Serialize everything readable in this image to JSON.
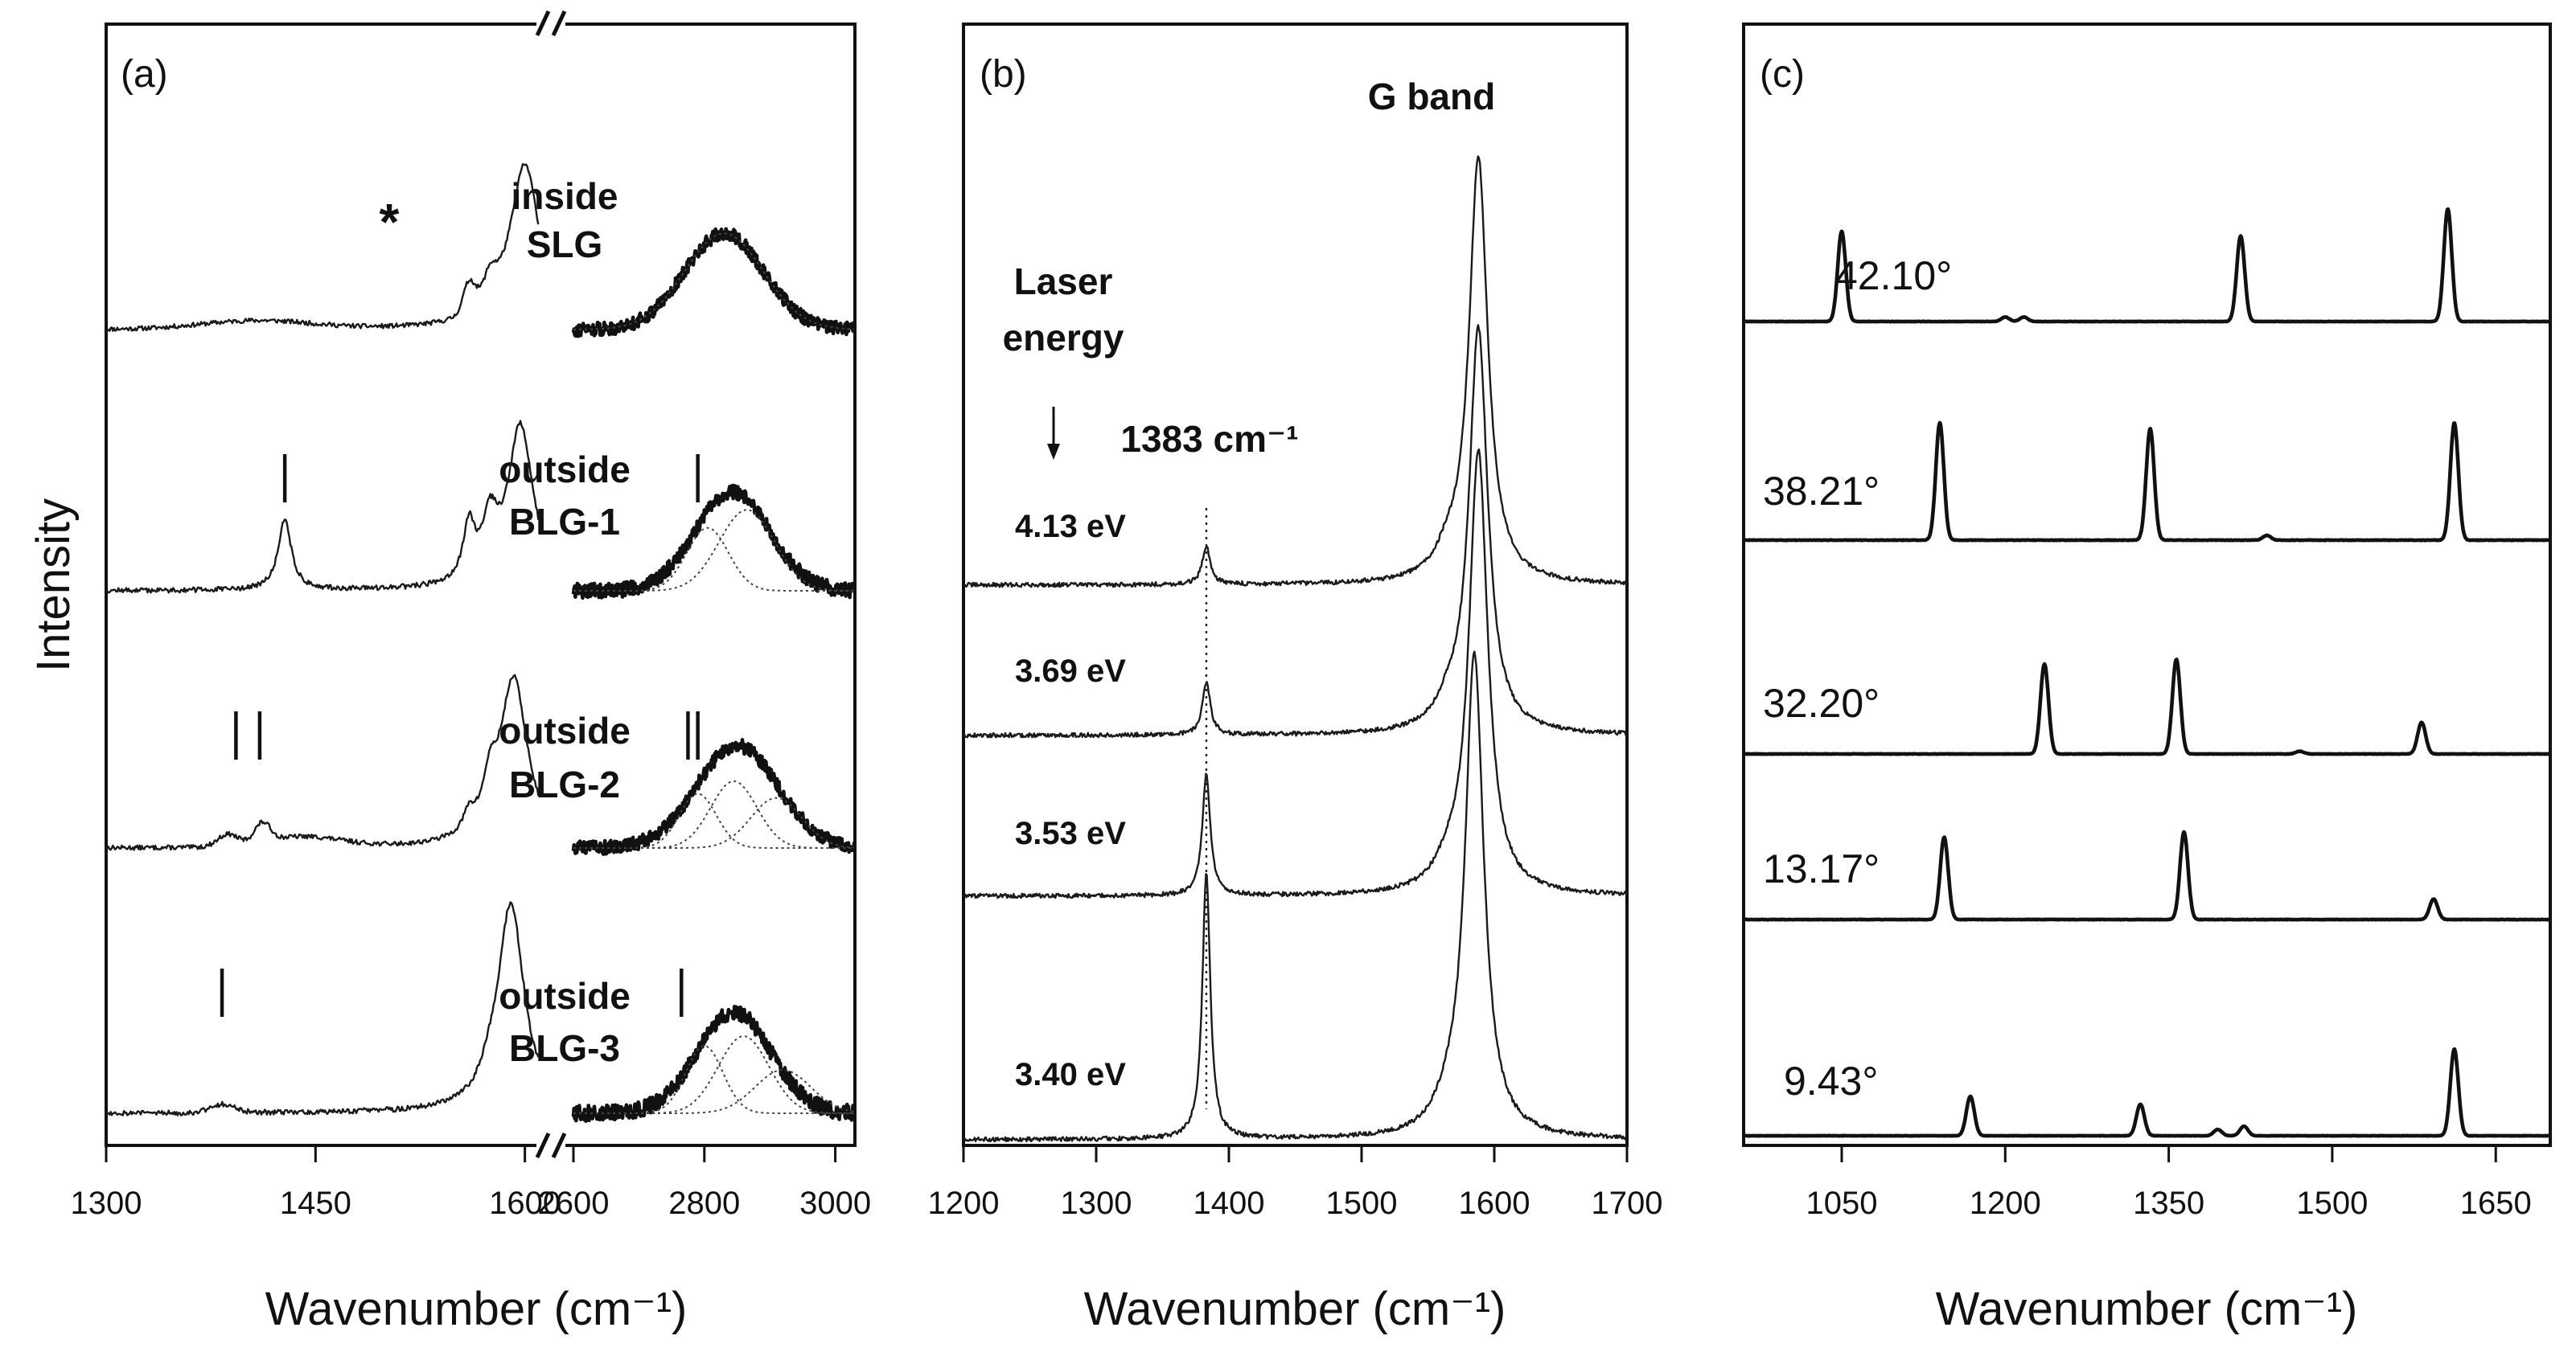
{
  "chart_data": [
    {
      "panel": "(a)",
      "type": "line",
      "title": "",
      "xlabel": "Wavenumber (cm⁻¹)",
      "ylabel": "Intensity",
      "axis_break": true,
      "segments": [
        {
          "xlim": [
            1300,
            1610
          ],
          "ticks": [
            1300,
            1450,
            1600
          ],
          "tick_labels": [
            "1300",
            "1450",
            "1600"
          ]
        },
        {
          "xlim": [
            2600,
            3030
          ],
          "ticks": [
            2600,
            2800,
            3000
          ],
          "tick_labels": [
            "2600",
            "2800",
            "3000"
          ]
        }
      ],
      "series": [
        {
          "name": "inside SLG",
          "label_lines": [
            "inside",
            "SLG"
          ],
          "peaks": [
            1575,
            1600,
            2830
          ],
          "star_marker": "*",
          "markers": []
        },
        {
          "name": "outside BLG-1",
          "label_lines": [
            "outside",
            "BLG-1"
          ],
          "peaks": [
            1428,
            1575,
            1600,
            2840
          ],
          "markers": [
            1428,
            2790
          ]
        },
        {
          "name": "outside BLG-2",
          "label_lines": [
            "outside",
            "BLG-2"
          ],
          "peaks": [
            1395,
            1410,
            1575,
            1597,
            2850
          ],
          "markers": [
            1393,
            1410,
            2775,
            2790
          ]
        },
        {
          "name": "outside BLG-3",
          "label_lines": [
            "outside",
            "BLG-3"
          ],
          "peaks": [
            1383,
            1590,
            2845
          ],
          "markers": [
            1383,
            2765
          ]
        }
      ]
    },
    {
      "panel": "(b)",
      "type": "line",
      "title": "",
      "xlabel": "Wavenumber (cm⁻¹)",
      "ylabel": "",
      "xlim": [
        1200,
        1700
      ],
      "ticks": [
        1200,
        1300,
        1400,
        1500,
        1600,
        1700
      ],
      "tick_labels": [
        "1200",
        "1300",
        "1400",
        "1500",
        "1600",
        "1700"
      ],
      "annotations": {
        "g_band": "G band",
        "laser_line1": "Laser",
        "laser_line2": "energy",
        "peak_label": "1383 cm⁻¹",
        "peak_position": 1383
      },
      "series": [
        {
          "name": "4.13 eV",
          "peak_1383_rel": 0.08,
          "g_peak": 1588
        },
        {
          "name": "3.69 eV",
          "peak_1383_rel": 0.11,
          "g_peak": 1588
        },
        {
          "name": "3.53 eV",
          "peak_1383_rel": 0.25,
          "g_peak": 1588
        },
        {
          "name": "3.40 eV",
          "peak_1383_rel": 0.55,
          "g_peak": 1585
        }
      ]
    },
    {
      "panel": "(c)",
      "type": "line",
      "title": "",
      "xlabel": "Wavenumber (cm⁻¹)",
      "ylabel": "",
      "xlim": [
        960,
        1700
      ],
      "ticks": [
        1050,
        1200,
        1350,
        1500,
        1650
      ],
      "tick_labels": [
        "1050",
        "1200",
        "1350",
        "1500",
        "1650"
      ],
      "series": [
        {
          "name": "42.10°",
          "peaks": [
            [
              1050,
              1.0
            ],
            [
              1200,
              0.05
            ],
            [
              1217,
              0.05
            ],
            [
              1416,
              0.95
            ],
            [
              1606,
              1.25
            ]
          ]
        },
        {
          "name": "38.21°",
          "peaks": [
            [
              1140,
              1.0
            ],
            [
              1333,
              0.95
            ],
            [
              1440,
              0.04
            ],
            [
              1612,
              1.0
            ]
          ]
        },
        {
          "name": "32.20°",
          "peaks": [
            [
              1236,
              1.0
            ],
            [
              1357,
              1.05
            ],
            [
              1470,
              0.03
            ],
            [
              1582,
              0.35
            ]
          ]
        },
        {
          "name": "13.17°",
          "peaks": [
            [
              1144,
              0.8
            ],
            [
              1364,
              0.85
            ],
            [
              1593,
              0.2
            ]
          ]
        },
        {
          "name": "9.43°",
          "peaks": [
            [
              1168,
              0.5
            ],
            [
              1324,
              0.4
            ],
            [
              1395,
              0.08
            ],
            [
              1419,
              0.12
            ],
            [
              1612,
              1.1
            ]
          ]
        }
      ]
    }
  ]
}
